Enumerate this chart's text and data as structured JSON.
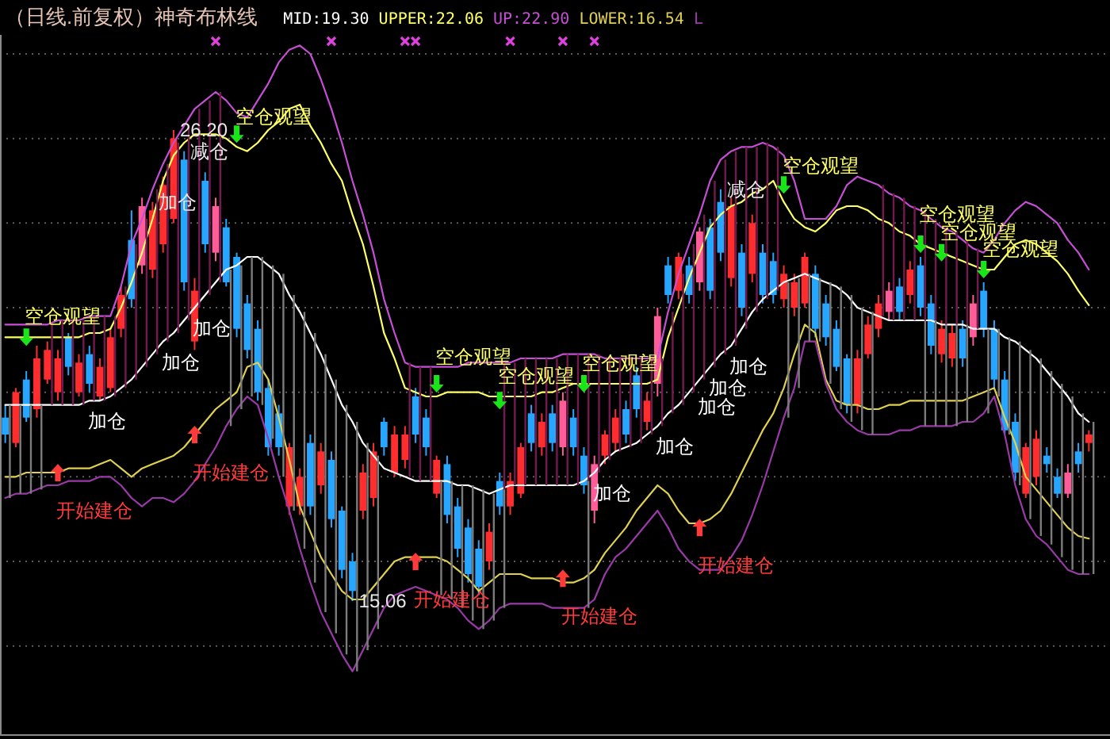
{
  "chart_data": {
    "type": "candlestick",
    "title": "（日线.前复权）神奇布林线",
    "categories": [
      null,
      null,
      null,
      null,
      null,
      null,
      null,
      null,
      null,
      null,
      null,
      null,
      null,
      null,
      null,
      null,
      null,
      null,
      null,
      null,
      null,
      null,
      null,
      null,
      null,
      null,
      null,
      null,
      null,
      null,
      null,
      null,
      null,
      null,
      null,
      null,
      null,
      null,
      null,
      null,
      null,
      null,
      null,
      null,
      null,
      null,
      null,
      null,
      null,
      null,
      null,
      null,
      null,
      null,
      null,
      null,
      null,
      null,
      null,
      null,
      null,
      null,
      null,
      null,
      null,
      null,
      null,
      null,
      null,
      null,
      null,
      null,
      null,
      null,
      null,
      null,
      null,
      null,
      null,
      null,
      null,
      null,
      null,
      null,
      null,
      null,
      null,
      null,
      null,
      null,
      null,
      null,
      null,
      null,
      null,
      null,
      null,
      null,
      null,
      null,
      null,
      null,
      null,
      null
    ],
    "ohlc": [
      [
        19.4,
        19.7,
        18.8,
        19.0
      ],
      [
        18.8,
        20.1,
        18.7,
        20.0
      ],
      [
        20.3,
        20.5,
        19.3,
        19.4
      ],
      [
        19.6,
        21.1,
        19.4,
        20.8
      ],
      [
        20.3,
        21.2,
        20.2,
        21.0
      ],
      [
        20.0,
        21.0,
        19.8,
        20.8
      ],
      [
        21.3,
        21.4,
        20.4,
        20.6
      ],
      [
        20.0,
        20.9,
        19.9,
        20.7
      ],
      [
        20.9,
        21.1,
        20.0,
        20.2
      ],
      [
        19.9,
        20.8,
        19.8,
        20.6
      ],
      [
        20.1,
        21.5,
        20.0,
        21.3
      ],
      [
        21.5,
        22.5,
        21.3,
        22.3
      ],
      [
        23.6,
        24.3,
        22.0,
        22.2
      ],
      [
        23.0,
        24.6,
        22.8,
        24.4
      ],
      [
        22.9,
        24.5,
        22.7,
        24.3
      ],
      [
        23.5,
        25.1,
        23.3,
        24.9
      ],
      [
        24.1,
        26.2,
        24.0,
        26.0
      ],
      [
        25.5,
        25.7,
        22.4,
        22.6
      ],
      [
        21.2,
        22.7,
        21.0,
        22.4
      ],
      [
        25.0,
        25.2,
        23.3,
        23.5
      ],
      [
        23.3,
        24.6,
        23.1,
        24.4
      ],
      [
        23.9,
        24.1,
        22.5,
        22.6
      ],
      [
        23.2,
        23.3,
        21.3,
        21.5
      ],
      [
        22.1,
        22.3,
        20.8,
        21.0
      ],
      [
        21.5,
        21.7,
        19.8,
        20.0
      ],
      [
        20.1,
        20.3,
        18.5,
        18.7
      ],
      [
        19.5,
        19.7,
        18.5,
        18.7
      ],
      [
        17.3,
        18.8,
        17.1,
        18.7
      ],
      [
        17.3,
        18.2,
        17.1,
        18.0
      ],
      [
        18.8,
        19.0,
        17.1,
        17.3
      ],
      [
        17.8,
        18.8,
        17.6,
        18.6
      ],
      [
        18.4,
        18.6,
        16.8,
        17.0
      ],
      [
        17.2,
        17.3,
        15.6,
        15.8
      ],
      [
        16.0,
        16.2,
        15.06,
        15.3
      ],
      [
        17.2,
        18.3,
        17.0,
        18.1
      ],
      [
        17.5,
        18.8,
        17.3,
        18.6
      ],
      [
        19.3,
        19.4,
        18.5,
        18.7
      ],
      [
        18.1,
        19.2,
        18.0,
        19.0
      ],
      [
        18.4,
        19.2,
        18.2,
        19.0
      ],
      [
        19.9,
        20.1,
        18.8,
        19.0
      ],
      [
        19.4,
        19.6,
        18.5,
        18.7
      ],
      [
        17.6,
        18.5,
        17.5,
        18.4
      ],
      [
        18.3,
        18.5,
        16.9,
        17.1
      ],
      [
        17.3,
        17.5,
        16.1,
        16.3
      ],
      [
        16.8,
        17.0,
        15.5,
        15.7
      ],
      [
        16.3,
        16.5,
        15.2,
        15.4
      ],
      [
        16.0,
        16.9,
        15.8,
        16.7
      ],
      [
        17.9,
        18.1,
        17.1,
        17.3
      ],
      [
        17.3,
        18.1,
        17.1,
        17.9
      ],
      [
        17.6,
        18.8,
        17.5,
        18.7
      ],
      [
        19.5,
        19.7,
        18.6,
        18.8
      ],
      [
        18.7,
        19.5,
        18.5,
        19.3
      ],
      [
        19.5,
        19.7,
        18.6,
        18.8
      ],
      [
        18.7,
        20.0,
        18.5,
        19.8
      ],
      [
        19.4,
        19.6,
        18.5,
        18.7
      ],
      [
        18.5,
        18.7,
        17.6,
        17.8
      ],
      [
        17.2,
        18.5,
        16.9,
        18.3
      ],
      [
        18.5,
        19.1,
        18.3,
        19.0
      ],
      [
        18.8,
        19.6,
        18.6,
        19.4
      ],
      [
        19.6,
        19.8,
        18.8,
        19.0
      ],
      [
        20.4,
        20.6,
        19.4,
        19.6
      ],
      [
        19.3,
        20.0,
        19.1,
        19.8
      ],
      [
        20.2,
        22.0,
        19.9,
        21.8
      ],
      [
        23.0,
        23.2,
        22.1,
        22.3
      ],
      [
        22.4,
        23.3,
        22.2,
        23.2
      ],
      [
        23.0,
        23.2,
        22.1,
        22.3
      ],
      [
        22.6,
        23.9,
        22.4,
        23.8
      ],
      [
        23.9,
        24.1,
        22.2,
        22.4
      ],
      [
        24.5,
        24.8,
        23.1,
        23.3
      ],
      [
        22.7,
        24.6,
        22.5,
        24.4
      ],
      [
        23.3,
        23.5,
        21.8,
        22.0
      ],
      [
        22.8,
        24.2,
        22.6,
        24.0
      ],
      [
        23.3,
        23.5,
        22.1,
        22.3
      ],
      [
        23.1,
        23.3,
        22.1,
        22.3
      ],
      [
        22.2,
        23.0,
        22.0,
        22.8
      ],
      [
        22.0,
        22.8,
        21.8,
        22.6
      ],
      [
        22.1,
        23.3,
        22.0,
        23.2
      ],
      [
        22.8,
        23.0,
        21.3,
        21.5
      ],
      [
        22.1,
        22.3,
        21.1,
        21.3
      ],
      [
        21.5,
        21.7,
        20.5,
        20.6
      ],
      [
        20.8,
        20.9,
        19.5,
        19.7
      ],
      [
        19.7,
        21.0,
        19.5,
        20.8
      ],
      [
        20.9,
        21.8,
        20.8,
        21.6
      ],
      [
        21.5,
        22.3,
        21.3,
        22.1
      ],
      [
        21.9,
        22.6,
        21.7,
        22.4
      ],
      [
        22.5,
        22.7,
        21.7,
        21.9
      ],
      [
        22.3,
        23.1,
        22.1,
        22.9
      ],
      [
        23.0,
        23.2,
        21.8,
        22.0
      ],
      [
        22.1,
        22.3,
        20.9,
        21.1
      ],
      [
        20.9,
        21.7,
        20.7,
        21.5
      ],
      [
        20.8,
        21.6,
        20.6,
        21.4
      ],
      [
        21.5,
        21.7,
        20.6,
        20.8
      ],
      [
        21.3,
        22.3,
        21.1,
        22.1
      ],
      [
        22.4,
        22.6,
        21.3,
        21.5
      ],
      [
        21.5,
        21.7,
        20.1,
        20.3
      ],
      [
        20.3,
        20.5,
        19.0,
        19.1
      ],
      [
        19.3,
        19.5,
        17.9,
        18.1
      ],
      [
        17.6,
        18.8,
        17.5,
        18.7
      ],
      [
        18.0,
        19.1,
        17.8,
        18.9
      ],
      [
        18.5,
        18.7,
        18.1,
        18.3
      ],
      [
        18.0,
        18.2,
        17.5,
        17.6
      ],
      [
        17.6,
        18.3,
        17.5,
        18.1
      ],
      [
        18.6,
        18.8,
        18.1,
        18.3
      ],
      [
        18.8,
        19.1,
        18.6,
        19.0
      ]
    ],
    "colors": [
      "#26a6ff",
      "#ff2d2d",
      "#26a6ff",
      "#ff2d2d",
      "#ff2d2d",
      "#ff2d2d",
      "#26a6ff",
      "#ff2d2d",
      "#26a6ff",
      "#ff2d2d",
      "#ff2d2d",
      "#ff2d2d",
      "#26a6ff",
      "#ff5c9a",
      "#ff2d2d",
      "#ff2d2d",
      "#ff2d2d",
      "#26a6ff",
      "#ff2d2d",
      "#26a6ff",
      "#ff5c9a",
      "#26a6ff",
      "#26a6ff",
      "#26a6ff",
      "#26a6ff",
      "#26a6ff",
      "#26a6ff",
      "#ff2d2d",
      "#ff2d2d",
      "#26a6ff",
      "#ff2d2d",
      "#26a6ff",
      "#26a6ff",
      "#26a6ff",
      "#ff2d2d",
      "#ff2d2d",
      "#26a6ff",
      "#ff2d2d",
      "#ff2d2d",
      "#26a6ff",
      "#26a6ff",
      "#ff2d2d",
      "#26a6ff",
      "#26a6ff",
      "#26a6ff",
      "#26a6ff",
      "#ff2d2d",
      "#26a6ff",
      "#ff2d2d",
      "#ff2d2d",
      "#26a6ff",
      "#ff2d2d",
      "#26a6ff",
      "#ff5c9a",
      "#26a6ff",
      "#26a6ff",
      "#ff5c9a",
      "#ff2d2d",
      "#ff2d2d",
      "#26a6ff",
      "#26a6ff",
      "#ff2d2d",
      "#ff5c9a",
      "#26a6ff",
      "#ff2d2d",
      "#26a6ff",
      "#ff5c9a",
      "#26a6ff",
      "#26a6ff",
      "#ff2d2d",
      "#26a6ff",
      "#ff2d2d",
      "#26a6ff",
      "#26a6ff",
      "#ff2d2d",
      "#ff2d2d",
      "#ff2d2d",
      "#26a6ff",
      "#26a6ff",
      "#26a6ff",
      "#26a6ff",
      "#ff2d2d",
      "#ff2d2d",
      "#ff2d2d",
      "#ff5c9a",
      "#26a6ff",
      "#ff2d2d",
      "#26a6ff",
      "#26a6ff",
      "#ff2d2d",
      "#ff2d2d",
      "#26a6ff",
      "#ff5c9a",
      "#26a6ff",
      "#26a6ff",
      "#26a6ff",
      "#26a6ff",
      "#ff2d2d",
      "#ff2d2d",
      "#26a6ff",
      "#26a6ff",
      "#ff5c9a",
      "#26a6ff",
      "#ff2d2d"
    ],
    "value_labels": [
      null,
      null,
      null,
      null,
      null,
      null,
      null,
      null,
      null,
      null,
      null,
      null,
      null,
      null,
      "加仓",
      null,
      "26.20",
      "减仓",
      null,
      null,
      null,
      null,
      null,
      null,
      null,
      null,
      null,
      null,
      null,
      null,
      null,
      null,
      null,
      "15.06",
      null,
      null,
      null,
      null,
      null,
      null,
      null,
      null,
      null,
      null,
      null,
      null,
      null,
      null,
      null,
      null,
      null,
      null,
      null,
      null,
      null,
      null,
      null,
      null,
      null,
      null,
      null,
      null,
      null,
      null,
      null,
      null,
      null,
      null,
      "减仓",
      null,
      null,
      null,
      null,
      null,
      null,
      null,
      null,
      null,
      null,
      null,
      null,
      null,
      null,
      null,
      null,
      null,
      null,
      null,
      null,
      null,
      null,
      null,
      null,
      null,
      null,
      null,
      null,
      null,
      null,
      null,
      null,
      null,
      null,
      null
    ],
    "ylim": [
      11.95,
      28.45
    ],
    "yticks": [
      {
        "value": 14,
        "label": null
      },
      {
        "value": 16,
        "label": null
      },
      {
        "value": 18,
        "label": null
      },
      {
        "value": 20,
        "label": null
      },
      {
        "value": 22,
        "label": null
      },
      {
        "value": 24,
        "label": null
      },
      {
        "value": 26,
        "label": null
      },
      {
        "value": 28,
        "label": null
      }
    ],
    "grid": "y",
    "legend": "top left",
    "series": [
      {
        "name": "MID:19.30",
        "type": "line",
        "color": "#ffffff",
        "values": [
          19.7,
          19.7,
          19.7,
          19.7,
          19.7,
          19.7,
          19.7,
          19.7,
          19.8,
          19.8,
          19.9,
          20.1,
          20.3,
          20.6,
          20.9,
          21.2,
          21.4,
          21.7,
          22.0,
          22.3,
          22.6,
          22.9,
          23.0,
          23.2,
          23.2,
          23.0,
          22.8,
          22.3,
          21.9,
          21.4,
          20.9,
          20.3,
          19.7,
          19.3,
          18.8,
          18.5,
          18.2,
          18.1,
          18.0,
          17.9,
          17.9,
          17.9,
          17.9,
          17.8,
          17.8,
          17.7,
          17.6,
          17.7,
          17.8,
          17.8,
          17.8,
          17.8,
          17.8,
          17.8,
          17.8,
          17.9,
          18.1,
          18.4,
          18.6,
          18.7,
          18.8,
          19.0,
          19.2,
          19.5,
          19.7,
          20.0,
          20.3,
          20.6,
          20.9,
          21.1,
          21.5,
          21.9,
          22.2,
          22.4,
          22.6,
          22.7,
          22.8,
          22.7,
          22.6,
          22.5,
          22.3,
          22.0,
          21.9,
          21.8,
          21.7,
          21.7,
          21.7,
          21.7,
          21.7,
          21.6,
          21.6,
          21.6,
          21.5,
          21.5,
          21.5,
          21.3,
          21.2,
          21.0,
          20.8,
          20.5,
          20.2,
          19.9,
          19.5,
          19.3
        ],
        "value_labels": [
          null,
          null,
          null,
          null,
          null,
          null,
          null,
          null,
          "加仓",
          null,
          null,
          null,
          null,
          null,
          null,
          "加仓",
          null,
          null,
          "加仓",
          null,
          null,
          null,
          null,
          null,
          null,
          null,
          null,
          null,
          null,
          null,
          null,
          null,
          null,
          null,
          null,
          null,
          null,
          null,
          null,
          null,
          null,
          null,
          null,
          null,
          null,
          null,
          null,
          null,
          null,
          null,
          null,
          null,
          null,
          null,
          null,
          null,
          "加仓",
          null,
          null,
          null,
          null,
          null,
          "加仓",
          null,
          null,
          null,
          "加仓",
          "加仓",
          null,
          "加仓",
          null,
          null,
          null,
          null,
          null,
          null,
          null,
          null,
          null,
          null,
          null,
          null,
          null,
          null,
          null,
          null,
          null,
          null,
          null,
          null,
          null,
          null,
          null,
          null,
          null,
          null,
          null,
          null,
          null,
          null,
          null,
          null,
          null,
          null
        ]
      },
      {
        "name": "UPPER:22.06",
        "type": "line",
        "color": "#ffff66",
        "values": [
          21.3,
          21.3,
          21.3,
          21.3,
          21.3,
          21.3,
          21.3,
          21.3,
          21.4,
          21.4,
          21.5,
          22.0,
          22.6,
          23.3,
          24.1,
          25.0,
          25.6,
          25.9,
          26.1,
          26.1,
          26.1,
          26.0,
          25.8,
          25.7,
          25.9,
          26.2,
          26.4,
          26.7,
          26.8,
          26.3,
          25.9,
          25.4,
          25.0,
          24.2,
          23.5,
          22.5,
          21.4,
          20.8,
          20.1,
          20.0,
          19.9,
          19.9,
          20.0,
          20.0,
          20.0,
          20.0,
          19.9,
          19.9,
          19.9,
          19.9,
          19.9,
          20.0,
          20.0,
          20.1,
          20.2,
          20.2,
          20.2,
          20.2,
          20.2,
          20.2,
          20.2,
          20.2,
          20.3,
          21.3,
          22.0,
          22.7,
          23.3,
          23.9,
          24.2,
          24.4,
          24.5,
          24.7,
          24.8,
          25.0,
          24.5,
          24.1,
          23.9,
          23.8,
          24.0,
          24.3,
          24.4,
          24.4,
          24.3,
          24.1,
          24.0,
          23.8,
          23.7,
          23.5,
          23.4,
          23.3,
          23.2,
          23.1,
          23.0,
          22.9,
          22.9,
          23.2,
          23.5,
          23.6,
          23.5,
          23.3,
          23.1,
          22.8,
          22.4,
          22.06
        ],
        "value_labels": [
          null,
          null,
          "空仓观望",
          null,
          null,
          null,
          null,
          null,
          null,
          null,
          null,
          null,
          null,
          null,
          null,
          null,
          null,
          null,
          null,
          null,
          null,
          null,
          "空仓观望",
          null,
          null,
          null,
          null,
          null,
          null,
          null,
          null,
          null,
          null,
          null,
          null,
          null,
          null,
          null,
          null,
          null,
          null,
          "空仓观望",
          null,
          null,
          null,
          null,
          null,
          "空仓观望",
          null,
          null,
          null,
          null,
          null,
          null,
          null,
          "空仓观望",
          null,
          null,
          null,
          null,
          null,
          null,
          null,
          null,
          null,
          null,
          null,
          null,
          null,
          null,
          null,
          null,
          null,
          null,
          "空仓观望",
          null,
          null,
          null,
          null,
          null,
          null,
          null,
          null,
          null,
          null,
          null,
          null,
          "空仓观望",
          null,
          "空仓观望",
          null,
          null,
          null,
          "空仓观望",
          null,
          null,
          null,
          null,
          null,
          null,
          null,
          null,
          null,
          null
        ]
      },
      {
        "name": "UP:22.90",
        "type": "line",
        "color": "#c64fd6",
        "values": [
          21.6,
          21.6,
          21.6,
          21.6,
          21.6,
          21.7,
          21.7,
          21.7,
          21.8,
          21.8,
          21.8,
          22.5,
          23.5,
          24.1,
          24.8,
          25.4,
          25.9,
          26.3,
          26.7,
          26.9,
          27.1,
          26.9,
          26.6,
          26.5,
          26.9,
          27.3,
          27.8,
          28.1,
          28.2,
          28.0,
          27.4,
          26.7,
          25.9,
          25.0,
          24.2,
          23.3,
          22.2,
          21.4,
          20.7,
          20.6,
          20.6,
          20.6,
          20.6,
          20.6,
          20.7,
          20.7,
          20.7,
          20.7,
          20.7,
          20.8,
          20.8,
          20.8,
          20.8,
          20.9,
          20.9,
          20.9,
          20.9,
          20.8,
          20.8,
          20.8,
          20.8,
          20.8,
          20.8,
          21.9,
          22.8,
          23.5,
          24.2,
          25.0,
          25.5,
          25.7,
          25.8,
          25.8,
          25.9,
          25.8,
          25.6,
          25.0,
          24.1,
          24.1,
          24.1,
          24.4,
          24.9,
          25.1,
          25.0,
          24.9,
          24.7,
          24.6,
          24.4,
          24.3,
          24.1,
          23.9,
          23.8,
          23.6,
          23.4,
          23.3,
          23.6,
          24.0,
          24.3,
          24.5,
          24.4,
          24.2,
          24.0,
          23.6,
          23.3,
          22.9
        ]
      },
      {
        "name": "LOWER:16.54",
        "type": "line",
        "color": "#e0d050",
        "values": [
          18.0,
          18.0,
          18.1,
          18.1,
          18.1,
          18.1,
          18.2,
          18.2,
          18.2,
          18.3,
          18.4,
          18.2,
          18.0,
          18.2,
          18.3,
          18.4,
          18.5,
          18.7,
          19.0,
          19.3,
          19.6,
          19.8,
          20.0,
          20.6,
          20.7,
          20.3,
          19.4,
          18.4,
          17.3,
          16.7,
          16.1,
          15.7,
          15.3,
          15.1,
          15.1,
          15.4,
          15.7,
          16.0,
          16.1,
          16.1,
          16.1,
          16.1,
          16.0,
          15.8,
          15.6,
          15.3,
          15.5,
          15.7,
          15.7,
          15.7,
          15.6,
          15.6,
          15.6,
          15.5,
          15.5,
          15.6,
          15.8,
          16.2,
          16.5,
          16.8,
          17.2,
          17.5,
          17.8,
          17.6,
          17.2,
          16.9,
          16.9,
          17.0,
          17.2,
          17.6,
          18.1,
          18.6,
          19.1,
          19.5,
          20.1,
          20.9,
          21.6,
          21.4,
          20.3,
          19.8,
          19.7,
          19.7,
          19.6,
          19.6,
          19.7,
          19.7,
          19.8,
          19.8,
          19.8,
          19.8,
          19.8,
          19.8,
          19.9,
          20.0,
          20.1,
          19.4,
          18.8,
          18.0,
          17.7,
          17.4,
          17.1,
          16.8,
          16.6,
          16.54
        ]
      },
      {
        "name": "L",
        "type": "line",
        "color": "#9a3aa8",
        "values": [
          17.5,
          17.6,
          17.6,
          17.7,
          17.8,
          17.8,
          17.9,
          17.9,
          17.9,
          18.0,
          18.0,
          17.8,
          17.5,
          17.3,
          17.5,
          17.5,
          17.4,
          17.6,
          17.9,
          18.3,
          18.7,
          19.2,
          19.6,
          19.9,
          19.7,
          18.9,
          18.0,
          17.2,
          16.3,
          15.5,
          14.8,
          14.3,
          13.8,
          13.4,
          13.9,
          14.4,
          14.9,
          15.2,
          15.3,
          15.4,
          15.3,
          15.2,
          15.1,
          14.9,
          14.6,
          14.4,
          14.6,
          14.9,
          15.0,
          15.0,
          15.0,
          15.0,
          14.9,
          14.9,
          14.9,
          14.9,
          15.1,
          15.7,
          16.1,
          16.3,
          16.6,
          16.9,
          17.2,
          16.8,
          16.3,
          16.0,
          15.8,
          15.8,
          15.8,
          16.1,
          16.5,
          17.1,
          17.8,
          18.6,
          19.4,
          20.1,
          21.2,
          21.2,
          20.2,
          19.6,
          19.3,
          19.1,
          19.0,
          19.0,
          19.0,
          19.1,
          19.1,
          19.2,
          19.2,
          19.2,
          19.2,
          19.3,
          19.3,
          19.5,
          19.9,
          19.0,
          17.8,
          17.0,
          16.6,
          16.4,
          16.1,
          15.8,
          15.7,
          15.7
        ]
      },
      {
        "type": "bar",
        "color": "#741a4e",
        "base": [
          null,
          null,
          null,
          null,
          19.7,
          19.7,
          19.7,
          19.7,
          19.8,
          19.8,
          19.9,
          20.1,
          20.3,
          20.6,
          20.9,
          21.2,
          21.4,
          21.7,
          22.0,
          22.3,
          22.6,
          null,
          null,
          null,
          null,
          null,
          null,
          null,
          null,
          null,
          null,
          null,
          null,
          null,
          null,
          null,
          null,
          null,
          18.0,
          17.9,
          17.9,
          null,
          null,
          null,
          null,
          null,
          null,
          17.7,
          17.8,
          17.8,
          17.8,
          17.8,
          17.8,
          17.8,
          17.8,
          17.9,
          18.1,
          18.4,
          18.6,
          18.7,
          18.8,
          19.0,
          19.2,
          19.5,
          19.7,
          20.0,
          20.3,
          20.6,
          20.9,
          21.1,
          21.5,
          21.9,
          22.2,
          22.4,
          null,
          null,
          null,
          null,
          null,
          null,
          null,
          null,
          null,
          21.8,
          21.7,
          21.7,
          21.7,
          21.7,
          21.7,
          21.6,
          21.6,
          21.6,
          21.5,
          null,
          null,
          null,
          null,
          null,
          null,
          null,
          null,
          null,
          null,
          null
        ],
        "values": [
          null,
          null,
          null,
          null,
          1.9,
          2.0,
          2.0,
          2.0,
          2.0,
          2.0,
          1.9,
          2.4,
          3.2,
          3.5,
          3.9,
          4.2,
          4.5,
          4.6,
          4.7,
          4.6,
          4.5,
          null,
          null,
          null,
          null,
          null,
          null,
          null,
          null,
          null,
          null,
          null,
          null,
          null,
          null,
          null,
          null,
          null,
          2.7,
          2.7,
          2.7,
          null,
          null,
          null,
          null,
          null,
          null,
          3.0,
          2.9,
          3.0,
          3.0,
          3.0,
          3.0,
          3.1,
          3.1,
          3.0,
          2.8,
          2.4,
          2.2,
          2.1,
          2.0,
          1.8,
          1.6,
          2.4,
          3.1,
          3.5,
          3.9,
          4.4,
          4.6,
          4.6,
          4.3,
          3.9,
          3.7,
          3.4,
          null,
          null,
          null,
          null,
          null,
          null,
          null,
          null,
          null,
          3.1,
          3.0,
          2.9,
          2.7,
          2.6,
          2.4,
          2.3,
          2.2,
          2.0,
          1.9,
          null,
          null,
          null,
          null,
          null,
          null,
          null,
          null,
          null,
          null,
          null
        ]
      },
      {
        "type": "bar",
        "color": "#7c7c7c",
        "base": [
          17.5,
          17.6,
          17.6,
          17.7,
          null,
          null,
          null,
          null,
          null,
          null,
          null,
          null,
          null,
          null,
          null,
          null,
          null,
          null,
          null,
          null,
          null,
          19.2,
          19.6,
          19.9,
          19.7,
          18.9,
          18.0,
          17.2,
          16.3,
          15.5,
          14.8,
          14.3,
          13.8,
          13.4,
          13.9,
          14.4,
          null,
          null,
          null,
          null,
          null,
          15.2,
          15.1,
          14.9,
          14.6,
          14.4,
          14.6,
          14.9,
          null,
          null,
          null,
          null,
          null,
          null,
          null,
          14.9,
          null,
          null,
          null,
          null,
          null,
          null,
          null,
          null,
          null,
          null,
          null,
          null,
          null,
          null,
          null,
          null,
          null,
          null,
          19.4,
          20.1,
          21.2,
          21.2,
          20.2,
          19.6,
          19.3,
          19.1,
          19.0,
          null,
          null,
          null,
          null,
          19.2,
          19.2,
          19.2,
          19.2,
          19.3,
          null,
          19.5,
          19.9,
          19.0,
          17.8,
          17.0,
          16.6,
          16.4,
          16.1,
          15.8,
          15.7,
          15.7
        ],
        "values": [
          2.2,
          2.1,
          2.1,
          2.0,
          null,
          null,
          null,
          null,
          null,
          null,
          null,
          null,
          null,
          null,
          null,
          null,
          null,
          null,
          null,
          null,
          null,
          3.7,
          3.4,
          3.3,
          3.5,
          4.1,
          4.8,
          5.1,
          5.6,
          5.9,
          6.1,
          6.0,
          5.9,
          5.9,
          4.9,
          4.1,
          null,
          null,
          null,
          null,
          null,
          2.7,
          2.8,
          2.9,
          3.2,
          3.3,
          3.0,
          2.8,
          null,
          null,
          null,
          null,
          null,
          null,
          null,
          3.0,
          null,
          null,
          null,
          null,
          null,
          null,
          null,
          null,
          null,
          null,
          null,
          null,
          null,
          null,
          null,
          null,
          null,
          null,
          3.2,
          2.6,
          1.6,
          1.5,
          2.4,
          2.9,
          3.0,
          2.9,
          2.9,
          null,
          null,
          null,
          null,
          2.5,
          2.5,
          2.4,
          2.4,
          2.3,
          null,
          2.0,
          1.6,
          2.3,
          3.4,
          4.0,
          4.2,
          4.1,
          4.1,
          4.1,
          3.8,
          3.6
        ]
      },
      {
        "type": "scatter",
        "marker": "triangle",
        "color": "#ff3a3a",
        "values": [
          null,
          null,
          null,
          null,
          null,
          18.1,
          null,
          null,
          null,
          null,
          null,
          null,
          null,
          null,
          null,
          null,
          null,
          null,
          19.0,
          null,
          null,
          null,
          null,
          null,
          null,
          null,
          null,
          null,
          null,
          null,
          null,
          null,
          null,
          null,
          null,
          null,
          null,
          null,
          null,
          16.0,
          null,
          null,
          null,
          null,
          null,
          null,
          null,
          null,
          null,
          null,
          null,
          null,
          null,
          15.6,
          null,
          null,
          null,
          null,
          null,
          null,
          null,
          null,
          null,
          null,
          null,
          null,
          16.8,
          null,
          null,
          null,
          null,
          null,
          null,
          null,
          null,
          null,
          null,
          null,
          null,
          null,
          null,
          null,
          null,
          null,
          null,
          null,
          null,
          null,
          null,
          null,
          null,
          null,
          null,
          null,
          null,
          null,
          null,
          null,
          null,
          null,
          null,
          null,
          null,
          null
        ],
        "value_labels": [
          null,
          null,
          null,
          null,
          null,
          "开始建仓",
          null,
          null,
          null,
          null,
          null,
          null,
          null,
          null,
          null,
          null,
          null,
          null,
          "开始建仓",
          null,
          null,
          null,
          null,
          null,
          null,
          null,
          null,
          null,
          null,
          null,
          null,
          null,
          null,
          null,
          null,
          null,
          null,
          null,
          null,
          "开始建仓",
          null,
          null,
          null,
          null,
          null,
          null,
          null,
          null,
          null,
          null,
          null,
          null,
          null,
          "开始建仓",
          null,
          null,
          null,
          null,
          null,
          null,
          null,
          null,
          null,
          null,
          null,
          null,
          "开始建仓",
          null,
          null,
          null,
          null,
          null,
          null,
          null,
          null,
          null,
          null,
          null,
          null,
          null,
          null,
          null,
          null,
          null,
          null,
          null,
          null,
          null,
          null,
          null,
          null,
          null,
          null,
          null,
          null,
          null,
          null,
          null,
          null,
          null,
          null,
          null,
          null,
          null
        ]
      },
      {
        "type": "scatter",
        "marker": "triangle",
        "color": "#19e619",
        "values": [
          null,
          null,
          21.3,
          null,
          null,
          null,
          null,
          null,
          null,
          null,
          null,
          null,
          null,
          null,
          null,
          null,
          null,
          null,
          null,
          null,
          null,
          null,
          26.1,
          null,
          null,
          null,
          null,
          null,
          null,
          null,
          null,
          null,
          null,
          null,
          null,
          null,
          null,
          null,
          null,
          null,
          null,
          20.2,
          null,
          null,
          null,
          null,
          null,
          19.8,
          null,
          null,
          null,
          null,
          null,
          null,
          null,
          20.2,
          null,
          null,
          null,
          null,
          null,
          null,
          null,
          null,
          null,
          null,
          null,
          null,
          null,
          null,
          null,
          null,
          null,
          null,
          24.9,
          null,
          null,
          null,
          null,
          null,
          null,
          null,
          null,
          null,
          null,
          null,
          null,
          23.5,
          null,
          23.3,
          null,
          null,
          null,
          22.9,
          null,
          null,
          null,
          null,
          null,
          null,
          null,
          null,
          null,
          null
        ]
      },
      {
        "type": "scatter",
        "marker": "cross",
        "color": "#e040e0",
        "values": [
          null,
          null,
          null,
          null,
          null,
          null,
          null,
          null,
          null,
          null,
          null,
          null,
          null,
          null,
          null,
          null,
          null,
          null,
          null,
          null,
          28.3,
          null,
          null,
          null,
          null,
          null,
          null,
          null,
          null,
          null,
          null,
          28.3,
          null,
          null,
          null,
          null,
          null,
          null,
          28.3,
          28.3,
          null,
          null,
          null,
          null,
          null,
          null,
          null,
          null,
          28.3,
          null,
          null,
          null,
          null,
          28.3,
          null,
          null,
          28.3,
          null,
          null,
          null,
          null,
          null,
          null,
          null,
          null,
          null,
          null,
          null,
          null,
          null,
          null,
          null,
          null,
          null,
          null,
          null,
          null,
          null,
          null,
          null,
          null,
          null,
          null,
          null,
          null,
          null,
          null,
          null,
          null,
          null,
          null,
          null,
          null,
          null,
          null,
          null,
          null,
          null,
          null,
          null,
          null,
          null,
          null,
          null
        ]
      }
    ]
  }
}
